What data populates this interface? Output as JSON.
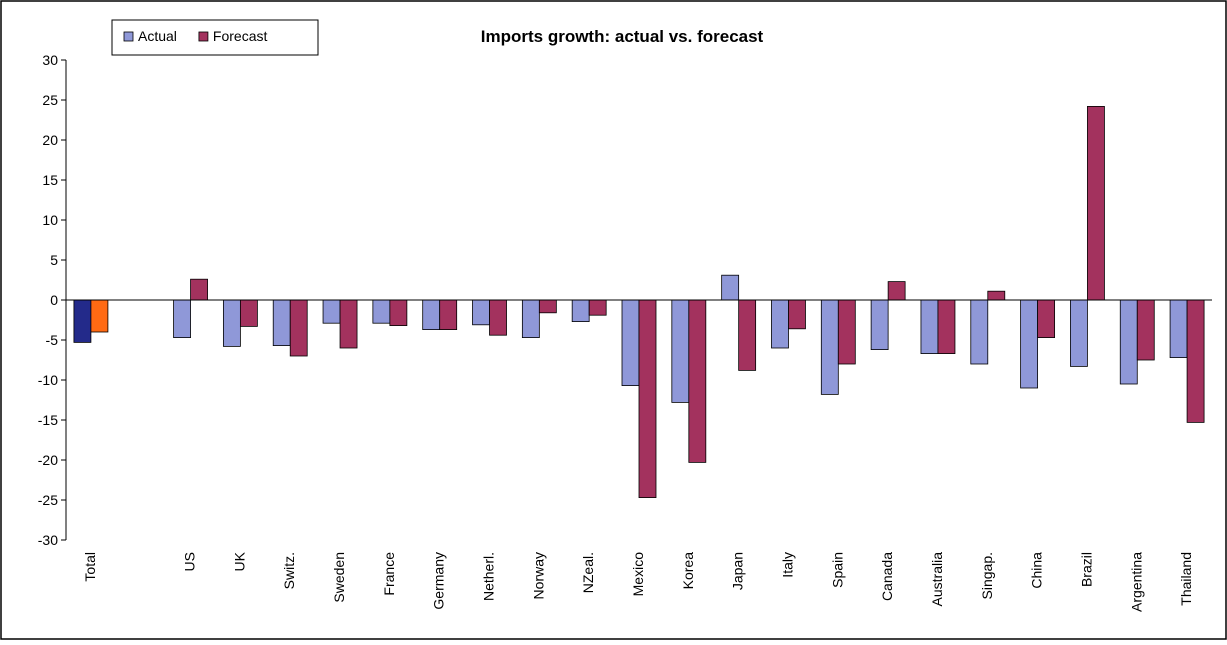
{
  "chart_data": {
    "type": "bar",
    "title": "Imports growth: actual vs. forecast",
    "categories": [
      "Total",
      null,
      "US",
      "UK",
      "Switz.",
      "Sweden",
      "France",
      "Germany",
      "Netherl.",
      "Norway",
      "NZeal.",
      "Mexico",
      "Korea",
      "Japan",
      "Italy",
      "Spain",
      "Canada",
      "Australia",
      "Singap.",
      "China",
      "Brazil",
      "Argentina",
      "Thailand"
    ],
    "series": [
      {
        "name": "Actual",
        "color": "#8f98d8",
        "highlight_index": 0,
        "highlight_color": "#232a8a",
        "values": [
          -5.3,
          null,
          -4.7,
          -5.8,
          -5.7,
          -2.9,
          -2.9,
          -3.7,
          -3.1,
          -4.7,
          -2.7,
          -10.7,
          -12.8,
          3.1,
          -6.0,
          -11.8,
          -6.2,
          -6.7,
          -8.0,
          -11.0,
          -8.3,
          -10.5,
          -7.2
        ]
      },
      {
        "name": "Forecast",
        "color": "#a3325e",
        "highlight_index": 0,
        "highlight_color": "#ff6a13",
        "values": [
          -4.0,
          null,
          2.6,
          -3.3,
          -7.0,
          -6.0,
          -3.2,
          -3.7,
          -4.4,
          -1.6,
          -1.9,
          -24.7,
          -20.3,
          -8.8,
          -3.6,
          -8.0,
          2.3,
          -6.7,
          1.1,
          -4.7,
          24.2,
          -7.5,
          -15.3
        ]
      }
    ],
    "ylim": [
      -30,
      30
    ],
    "yticks": [
      -30,
      -25,
      -20,
      -15,
      -10,
      -5,
      0,
      5,
      10,
      15,
      20,
      25,
      30
    ],
    "grid": false,
    "legend": "top-left"
  }
}
